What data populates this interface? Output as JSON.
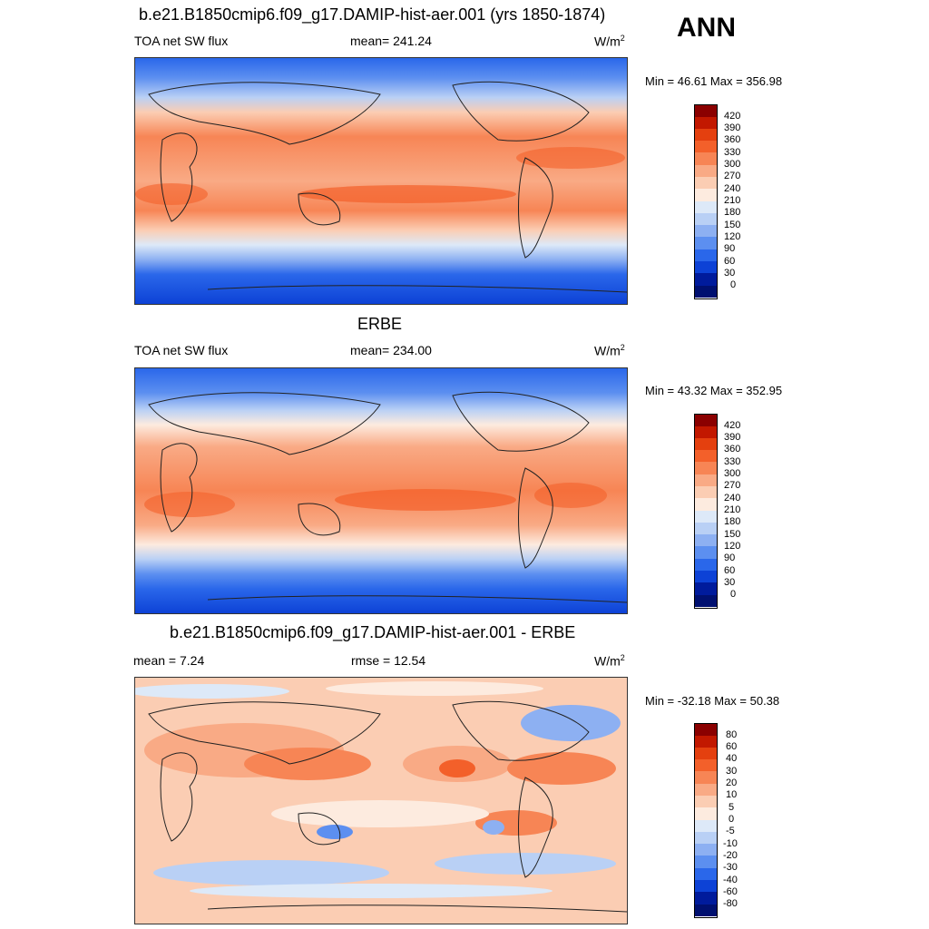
{
  "season": "ANN",
  "panels": [
    {
      "title": "b.e21.B1850cmip6.f09_g17.DAMIP-hist-aer.001 (yrs 1850-1874)",
      "left": "TOA net SW flux",
      "center": "mean= 241.24",
      "units_base": "W/m",
      "units_exp": "2",
      "minmax": "Min =  46.61 Max = 356.98",
      "levels": [
        "420",
        "390",
        "360",
        "330",
        "300",
        "270",
        "240",
        "210",
        "180",
        "150",
        "120",
        "90",
        "60",
        "30",
        "0"
      ],
      "colors": [
        "#8b0000",
        "#c21800",
        "#e4400f",
        "#f3602a",
        "#f78555",
        "#f9aa85",
        "#fbcdb3",
        "#fdebdf",
        "#dde9f8",
        "#b9d0f5",
        "#8db0f2",
        "#5c8ff0",
        "#2a67ea",
        "#0d42d6",
        "#001b9c",
        "#001070"
      ]
    },
    {
      "title": "ERBE",
      "left": "TOA net SW flux",
      "center": "mean= 234.00",
      "units_base": "W/m",
      "units_exp": "2",
      "minmax": "Min =  43.32 Max = 352.95",
      "levels": [
        "420",
        "390",
        "360",
        "330",
        "300",
        "270",
        "240",
        "210",
        "180",
        "150",
        "120",
        "90",
        "60",
        "30",
        "0"
      ],
      "colors": [
        "#8b0000",
        "#c21800",
        "#e4400f",
        "#f3602a",
        "#f78555",
        "#f9aa85",
        "#fbcdb3",
        "#fdebdf",
        "#dde9f8",
        "#b9d0f5",
        "#8db0f2",
        "#5c8ff0",
        "#2a67ea",
        "#0d42d6",
        "#001b9c",
        "#001070"
      ]
    },
    {
      "title": "b.e21.B1850cmip6.f09_g17.DAMIP-hist-aer.001 - ERBE",
      "left": "mean =   7.24",
      "center": "rmse =  12.54",
      "units_base": "W/m",
      "units_exp": "2",
      "minmax": "Min = -32.18 Max =  50.38",
      "levels": [
        "80",
        "60",
        "40",
        "30",
        "20",
        "10",
        "5",
        "0",
        "-5",
        "-10",
        "-20",
        "-30",
        "-40",
        "-60",
        "-80"
      ],
      "colors": [
        "#8b0000",
        "#c21800",
        "#e4400f",
        "#f3602a",
        "#f78555",
        "#f9aa85",
        "#fbcdb3",
        "#fdebdf",
        "#dde9f8",
        "#b9d0f5",
        "#8db0f2",
        "#5c8ff0",
        "#2a67ea",
        "#0d42d6",
        "#001b9c",
        "#001070"
      ]
    }
  ]
}
